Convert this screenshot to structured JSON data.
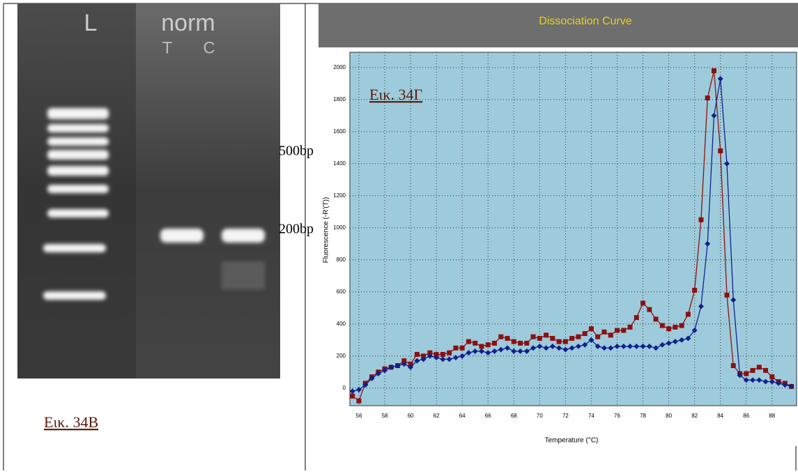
{
  "gel": {
    "lane_labels": [
      "L",
      "norm",
      "T",
      "C"
    ],
    "size_markers": [
      "500bp",
      "200bp"
    ],
    "caption": "Εικ. 34Β"
  },
  "chart_data": {
    "type": "line",
    "title": "Dissociation Curve",
    "annotation": "Εικ. 34Γ",
    "x_label": "Temperature (°C)",
    "y_label": "Fluorescence (-R'(T))",
    "x": [
      55.5,
      56,
      56.5,
      57,
      57.5,
      58,
      58.5,
      59,
      59.5,
      60,
      60.5,
      61,
      61.5,
      62,
      62.5,
      63,
      63.5,
      64,
      64.5,
      65,
      65.5,
      66,
      66.5,
      67,
      67.5,
      68,
      68.5,
      69,
      69.5,
      70,
      70.5,
      71,
      71.5,
      72,
      72.5,
      73,
      73.5,
      74,
      74.5,
      75,
      75.5,
      76,
      76.5,
      77,
      77.5,
      78,
      78.5,
      79,
      79.5,
      80,
      80.5,
      81,
      81.5,
      82,
      82.5,
      83,
      83.5,
      84,
      84.5,
      85,
      85.5,
      86,
      86.5,
      87,
      87.5,
      88,
      88.5,
      89,
      89.5
    ],
    "series": [
      {
        "color": "#8b1010",
        "marker": "square",
        "values": [
          -50,
          -80,
          30,
          70,
          100,
          120,
          130,
          140,
          170,
          150,
          210,
          200,
          220,
          210,
          210,
          220,
          250,
          250,
          290,
          280,
          260,
          270,
          280,
          320,
          310,
          290,
          280,
          280,
          320,
          310,
          330,
          310,
          290,
          290,
          310,
          320,
          340,
          370,
          320,
          350,
          330,
          360,
          360,
          380,
          440,
          530,
          490,
          430,
          390,
          370,
          380,
          390,
          460,
          610,
          1050,
          1810,
          1980,
          1480,
          580,
          140,
          90,
          90,
          110,
          130,
          110,
          70,
          40,
          30,
          10
        ]
      },
      {
        "color": "#10208c",
        "marker": "diamond",
        "values": [
          -20,
          -10,
          20,
          60,
          90,
          110,
          130,
          140,
          150,
          130,
          170,
          180,
          200,
          190,
          180,
          180,
          190,
          200,
          220,
          230,
          230,
          220,
          230,
          240,
          250,
          230,
          230,
          230,
          250,
          260,
          250,
          260,
          250,
          240,
          250,
          260,
          270,
          300,
          260,
          250,
          250,
          260,
          260,
          260,
          260,
          260,
          260,
          250,
          270,
          280,
          290,
          300,
          310,
          360,
          510,
          900,
          1700,
          1930,
          1400,
          550,
          80,
          50,
          50,
          50,
          40,
          40,
          30,
          20,
          10
        ]
      }
    ],
    "xlim": [
      55.3,
      89.9
    ],
    "ylim": [
      -110,
      2095
    ],
    "xticks": [
      56,
      58,
      60,
      62,
      64,
      66,
      68,
      70,
      72,
      74,
      76,
      78,
      80,
      82,
      84,
      86,
      88
    ],
    "yticks": [
      0,
      200,
      400,
      600,
      800,
      1000,
      1200,
      1400,
      1600,
      1800,
      2000
    ],
    "grid": true
  }
}
